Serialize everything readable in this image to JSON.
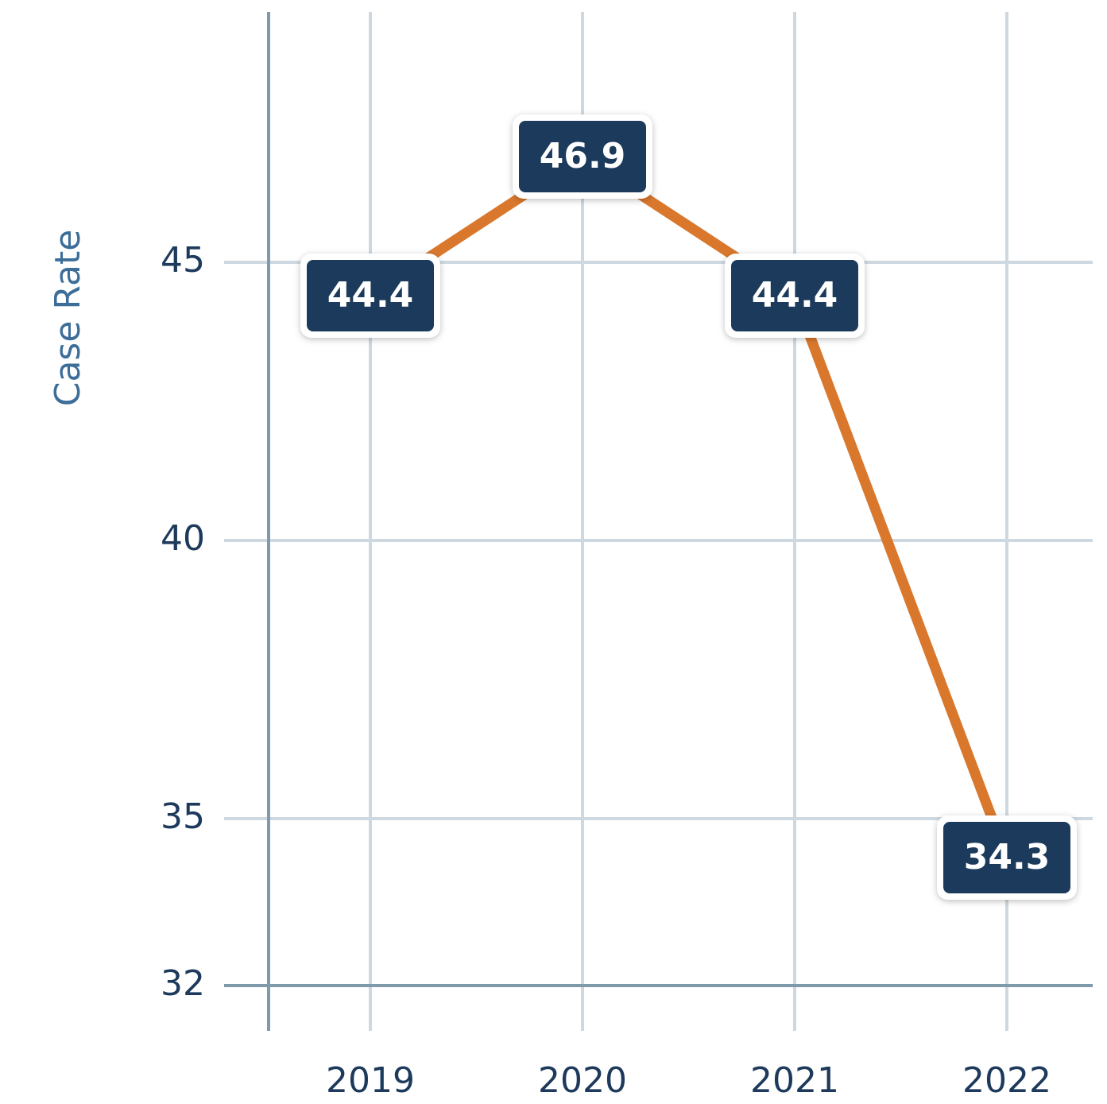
{
  "chart_data": {
    "type": "line",
    "y_label": "Case Rate",
    "categories": [
      "2019",
      "2020",
      "2021",
      "2022"
    ],
    "series": [
      {
        "name": "Case Rate",
        "color": "#d9782d",
        "values": [
          44.4,
          46.9,
          44.4,
          34.3
        ]
      }
    ],
    "ylim": [
      32,
      49.5
    ],
    "yticks": [
      32,
      35,
      40,
      45
    ],
    "grid": true
  }
}
